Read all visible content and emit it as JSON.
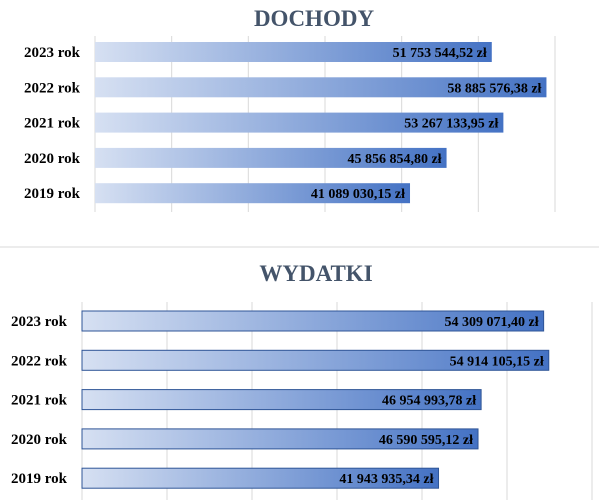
{
  "colors": {
    "bar_light": "#d6e0f2",
    "bar_dark": "#4472c4",
    "bar_border": "#2f5597",
    "title": "#44546a",
    "grid": "#d9d9d9",
    "separator": "#d9d9d9"
  },
  "chart_data": [
    {
      "type": "bar",
      "orientation": "horizontal",
      "title": "DOCHODY",
      "categories": [
        "2023 rok",
        "2022 rok",
        "2021 rok",
        "2020 rok",
        "2019 rok"
      ],
      "values": [
        51753544.52,
        58885576.38,
        53267133.95,
        45856854.8,
        41089030.15
      ],
      "data_labels": [
        "51 753 544,52 zł",
        "58 885 576,38 zł",
        "53 267 133,95 zł",
        "45 856 854,80 zł",
        "41 089 030,15 zł"
      ],
      "xlim": [
        0,
        60000000
      ],
      "grid": true,
      "axis_labels_visible": false,
      "bar_fill": "horizontal gradient light-to-dark blue"
    },
    {
      "type": "bar",
      "orientation": "horizontal",
      "title": "WYDATKI",
      "categories": [
        "2023 rok",
        "2022 rok",
        "2021 rok",
        "2020 rok",
        "2019 rok"
      ],
      "values": [
        54309071.4,
        54914105.15,
        46954993.78,
        46590595.12,
        41943935.34
      ],
      "data_labels": [
        "54 309 071,40 zł",
        "54 914 105,15 zł",
        "46 954 993,78 zł",
        "46 590 595,12 zł",
        "41 943 935,34 zł"
      ],
      "xlim": [
        0,
        60000000
      ],
      "grid": true,
      "axis_labels_visible": false,
      "bar_fill": "horizontal gradient light-to-dark blue, outlined"
    }
  ]
}
